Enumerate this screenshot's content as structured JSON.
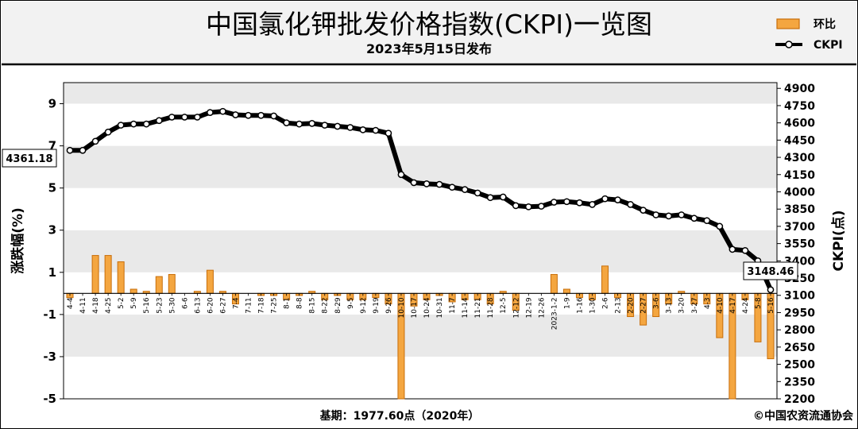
{
  "header": {
    "title": "中国氯化钾批发价格指数(CKPI)一览图",
    "subtitle": "2023年5月15日发布"
  },
  "legend": {
    "bar_label": "环比",
    "line_label": "CKPI"
  },
  "footer": {
    "base": "基期：1977.60点（2020年）",
    "copyright": "©中国农资流通协会"
  },
  "annotations": {
    "start_value": "4361.18",
    "end_value": "3148.46"
  },
  "colors": {
    "bar_fill": "#f4a640",
    "bar_edge": "#c86e0a",
    "line": "#000000",
    "marker": "#ffffff",
    "band": "#e9e9e9",
    "header_bg": "#f2f2f2"
  },
  "chart_data": {
    "type": "bar+line",
    "x": [
      "4-4",
      "4-11",
      "4-18",
      "4-25",
      "5-2",
      "5-9",
      "5-16",
      "5-23",
      "5-30",
      "6-6",
      "6-13",
      "6-20",
      "6-27",
      "7-4",
      "7-11",
      "7-18",
      "7-25",
      "8-1",
      "8-8",
      "8-15",
      "8-22",
      "8-29",
      "9-5",
      "9-12",
      "9-19",
      "9-26",
      "10-10",
      "10-17",
      "10-24",
      "10-31",
      "11-7",
      "11-14",
      "11-21",
      "11-28",
      "12-5",
      "12-12",
      "12-19",
      "12-26",
      "2023-1-2",
      "1-9",
      "1-16",
      "1-30",
      "2-6",
      "2-13",
      "2-20",
      "2-27",
      "3-6",
      "3-13",
      "3-20",
      "3-27",
      "4-3",
      "4-10",
      "4-17",
      "4-24",
      "5-8",
      "5-16"
    ],
    "left_axis": {
      "label": "涨跌幅(%)",
      "ylim": [
        -5,
        10
      ],
      "ticks": [
        9,
        7,
        5,
        3,
        1,
        -1,
        -3,
        -5
      ]
    },
    "right_axis": {
      "label": "CKPI(点)",
      "ylim": [
        2200,
        4950
      ],
      "ticks": [
        4900,
        4750,
        4600,
        4450,
        4300,
        4150,
        4000,
        3850,
        3700,
        3550,
        3400,
        3250,
        3100,
        2950,
        2800,
        2650,
        2500,
        2350,
        2200
      ]
    },
    "series": [
      {
        "name": "环比",
        "type": "bar",
        "axis": "left",
        "values": [
          -0.2,
          0,
          1.8,
          1.8,
          1.5,
          0.2,
          0.1,
          0.8,
          0.9,
          0,
          0.1,
          1.1,
          0.1,
          -0.5,
          0,
          -0.1,
          -0.1,
          -0.3,
          -0.1,
          0.1,
          -0.3,
          -0.1,
          -0.3,
          -0.3,
          -0.2,
          -0.5,
          -5,
          -0.6,
          -0.3,
          -0.1,
          -0.4,
          -0.3,
          -0.3,
          -0.5,
          0.1,
          -0.8,
          0,
          0,
          0.9,
          0.2,
          -0.2,
          -0.3,
          1.3,
          -0.2,
          -1.1,
          -1.5,
          -1.1,
          -0.5,
          0.1,
          -0.5,
          -0.5,
          -2.1,
          -5,
          -0.3,
          -2.3,
          -3.1
        ]
      },
      {
        "name": "CKPI",
        "type": "line",
        "axis": "right",
        "values": [
          4361.18,
          4361,
          4440,
          4520,
          4580,
          4590,
          4590,
          4620,
          4650,
          4650,
          4650,
          4690,
          4700,
          4670,
          4665,
          4665,
          4660,
          4600,
          4590,
          4595,
          4580,
          4570,
          4560,
          4540,
          4535,
          4510,
          4150,
          4080,
          4070,
          4065,
          4040,
          4020,
          3990,
          3950,
          3955,
          3880,
          3870,
          3875,
          3910,
          3915,
          3905,
          3890,
          3940,
          3930,
          3890,
          3840,
          3800,
          3790,
          3800,
          3770,
          3750,
          3700,
          3500,
          3490,
          3400,
          3148.46
        ]
      }
    ]
  }
}
